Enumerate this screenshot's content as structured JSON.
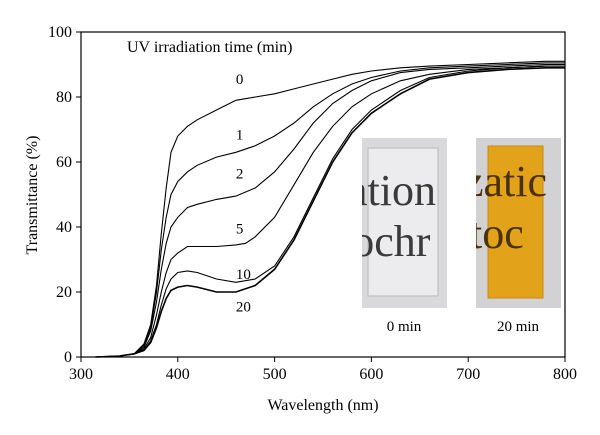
{
  "chart_data": {
    "type": "line",
    "title": "",
    "xlabel": "Wavelength (nm)",
    "ylabel": "Transmittance (%)",
    "xlim": [
      300,
      800
    ],
    "ylim": [
      0,
      100
    ],
    "xticks": [
      300,
      400,
      500,
      600,
      700,
      800
    ],
    "yticks": [
      0,
      20,
      40,
      60,
      80,
      100
    ],
    "grid": false,
    "legend_title": "UV irradiation time (min)",
    "series": [
      {
        "name": "0",
        "x": [
          315,
          340,
          355,
          365,
          372,
          378,
          383,
          388,
          393,
          400,
          410,
          420,
          440,
          460,
          480,
          500,
          520,
          540,
          560,
          580,
          600,
          630,
          660,
          700,
          740,
          780,
          800
        ],
        "y": [
          0,
          0.3,
          1,
          4,
          10,
          22,
          38,
          52,
          63,
          68,
          71,
          73,
          76,
          79,
          80,
          81,
          82.5,
          84,
          85.5,
          87,
          88,
          89,
          89.5,
          90,
          90.5,
          91,
          91
        ]
      },
      {
        "name": "1",
        "x": [
          315,
          340,
          355,
          365,
          372,
          378,
          383,
          388,
          393,
          400,
          410,
          420,
          440,
          460,
          480,
          500,
          520,
          540,
          560,
          580,
          600,
          630,
          660,
          700,
          740,
          780,
          800
        ],
        "y": [
          0,
          0.3,
          1,
          3.5,
          9,
          20,
          33,
          43,
          50,
          54,
          57,
          59,
          61.5,
          63,
          65,
          68,
          72,
          77,
          81,
          84,
          86,
          88,
          89,
          89.5,
          90,
          90.5,
          90.5
        ]
      },
      {
        "name": "2",
        "x": [
          315,
          340,
          355,
          365,
          372,
          378,
          383,
          388,
          393,
          400,
          410,
          420,
          440,
          460,
          480,
          500,
          520,
          540,
          560,
          580,
          600,
          630,
          660,
          700,
          740,
          780,
          800
        ],
        "y": [
          0,
          0.3,
          1,
          3,
          8,
          17,
          27,
          35,
          40,
          43,
          46,
          47,
          48.5,
          49.5,
          52,
          57,
          64,
          72,
          78,
          82,
          85,
          87.5,
          88.5,
          89,
          89.5,
          90,
          90
        ]
      },
      {
        "name": "5",
        "x": [
          315,
          340,
          355,
          365,
          372,
          378,
          383,
          388,
          393,
          400,
          410,
          420,
          440,
          460,
          470,
          480,
          500,
          520,
          540,
          560,
          580,
          600,
          630,
          660,
          700,
          740,
          780,
          800
        ],
        "y": [
          0,
          0.3,
          1,
          2.5,
          6,
          13,
          20,
          26,
          30,
          32,
          34,
          34,
          34,
          34.5,
          35,
          37,
          43,
          53,
          63,
          71,
          77,
          81,
          85,
          87,
          88.5,
          89,
          89.5,
          89.5
        ]
      },
      {
        "name": "10",
        "x": [
          315,
          340,
          355,
          365,
          372,
          378,
          383,
          388,
          393,
          400,
          410,
          420,
          440,
          460,
          480,
          500,
          520,
          540,
          560,
          580,
          600,
          630,
          660,
          700,
          740,
          780,
          800
        ],
        "y": [
          0,
          0.3,
          1,
          2,
          5,
          10,
          16,
          21,
          24,
          26,
          26.5,
          26,
          24,
          23,
          24,
          28,
          37,
          49,
          61,
          70,
          76,
          82,
          86,
          88,
          89,
          89.5,
          89.5
        ]
      },
      {
        "name": "20",
        "x": [
          315,
          340,
          355,
          365,
          372,
          378,
          383,
          388,
          393,
          400,
          410,
          420,
          440,
          460,
          480,
          500,
          520,
          540,
          560,
          580,
          600,
          630,
          660,
          700,
          740,
          780,
          800
        ],
        "y": [
          0,
          0.3,
          1,
          2,
          4.5,
          9,
          14,
          18,
          20.5,
          21.5,
          22,
          21.5,
          20,
          20,
          22,
          27,
          36,
          48,
          60,
          69,
          75,
          81,
          85.5,
          87.5,
          88.5,
          89,
          89
        ]
      }
    ],
    "series_label_positions": [
      {
        "name": "0",
        "x": 460,
        "y": 84
      },
      {
        "name": "1",
        "x": 460,
        "y": 67
      },
      {
        "name": "2",
        "x": 460,
        "y": 55
      },
      {
        "name": "5",
        "x": 460,
        "y": 38
      },
      {
        "name": "10",
        "x": 460,
        "y": 24
      },
      {
        "name": "20",
        "x": 460,
        "y": 14
      }
    ],
    "line_color": "#000000"
  },
  "insets": [
    {
      "caption": "0 min",
      "overlay_text_top": "ation",
      "overlay_text_bottom": "tochr",
      "panel_color": "#e8e8ea",
      "text_color": "#2a2a2a"
    },
    {
      "caption": "20 min",
      "overlay_text_top": "zatic",
      "overlay_text_bottom": "toc",
      "panel_color": "#e2a21a",
      "text_color": "#5a3e08"
    }
  ]
}
